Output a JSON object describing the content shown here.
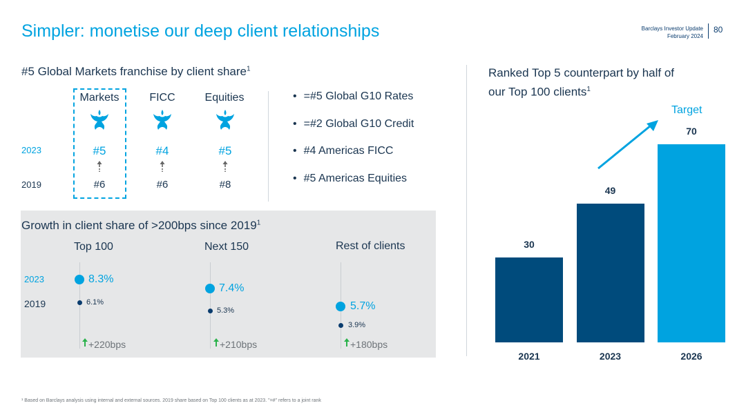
{
  "title": "Simpler: monetise our deep client relationships",
  "header": {
    "line1": "Barclays Investor Update",
    "line2": "February 2024",
    "page_number": "80"
  },
  "franchise": {
    "heading": "#5 Global Markets franchise by client share",
    "heading_sup": "1",
    "year_2023": "2023",
    "year_2019": "2019",
    "columns": [
      {
        "label": "Markets",
        "rank_2023": "#5",
        "rank_2019": "#6",
        "highlighted": true
      },
      {
        "label": "FICC",
        "rank_2023": "#4",
        "rank_2019": "#6",
        "highlighted": false
      },
      {
        "label": "Equities",
        "rank_2023": "#5",
        "rank_2019": "#8",
        "highlighted": false
      }
    ],
    "bullets": [
      "=#5 Global G10 Rates",
      "=#2 Global G10 Credit",
      "#4 Americas FICC",
      "#5 Americas Equities"
    ]
  },
  "growth": {
    "heading": "Growth in client share of >200bps since 2019",
    "heading_sup": "1",
    "year_2023": "2023",
    "year_2019": "2019",
    "segments": [
      {
        "label": "Top 100",
        "share_2023": "8.3%",
        "share_2019": "6.1%",
        "change": "+220bps"
      },
      {
        "label": "Next 150",
        "share_2023": "7.4%",
        "share_2019": "5.3%",
        "change": "+210bps"
      },
      {
        "label": "Rest of clients",
        "share_2023": "5.7%",
        "share_2019": "3.9%",
        "change": "+180bps"
      }
    ]
  },
  "ranked": {
    "heading_line1": "Ranked Top 5 counterpart by half of",
    "heading_line2": "our Top 100 clients",
    "heading_sup": "1",
    "target_label": "Target"
  },
  "chart_data": {
    "type": "bar",
    "categories": [
      "2021",
      "2023",
      "2026"
    ],
    "values": [
      30,
      49,
      70
    ],
    "value_labels": [
      "30",
      "49",
      "70"
    ],
    "colors": [
      "#004b7c",
      "#004b7c",
      "#00a3e0"
    ],
    "title": "Ranked Top 5 counterpart by half of our Top 100 clients",
    "annotation": "Target",
    "xlabel": "",
    "ylabel": ""
  },
  "footnote": "¹ Based on Barclays analysis using internal and external sources. 2019 share based on Top 100 clients as at 2023. \"=#\" refers to a joint rank",
  "colors": {
    "accent": "#00a3e0",
    "dark_blue": "#004b7c",
    "text": "#1a3550",
    "panel": "#e6e7e8",
    "arrow_up": "#2bb24c"
  }
}
